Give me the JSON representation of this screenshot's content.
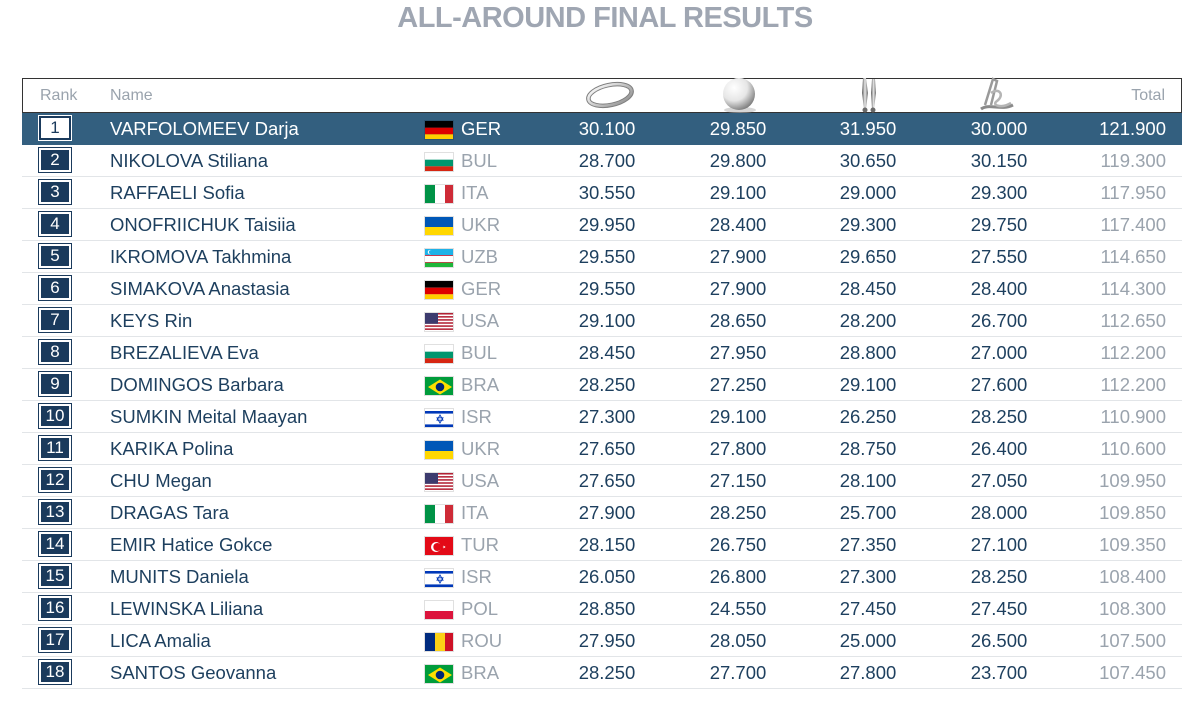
{
  "title": "ALL-AROUND FINAL RESULTS",
  "columns": {
    "rank": "Rank",
    "name": "Name",
    "apparatus_icons": [
      "hoop-icon",
      "ball-icon",
      "clubs-icon",
      "ribbon-icon"
    ],
    "total": "Total"
  },
  "colors": {
    "header_row_bg": "#335f7f",
    "rank_box_bg": "#1a3a5c",
    "title": "#9fa6b2",
    "muted_text": "#9aa3ad"
  },
  "rows": [
    {
      "rank": "1",
      "name": "VARFOLOMEEV Darja",
      "country": "GER",
      "flag": "ger",
      "scores": [
        "30.100",
        "29.850",
        "31.950",
        "30.000"
      ],
      "total": "121.900"
    },
    {
      "rank": "2",
      "name": "NIKOLOVA Stiliana",
      "country": "BUL",
      "flag": "bul",
      "scores": [
        "28.700",
        "29.800",
        "30.650",
        "30.150"
      ],
      "total": "119.300"
    },
    {
      "rank": "3",
      "name": "RAFFAELI Sofia",
      "country": "ITA",
      "flag": "ita",
      "scores": [
        "30.550",
        "29.100",
        "29.000",
        "29.300"
      ],
      "total": "117.950"
    },
    {
      "rank": "4",
      "name": "ONOFRIICHUK Taisiia",
      "country": "UKR",
      "flag": "ukr",
      "scores": [
        "29.950",
        "28.400",
        "29.300",
        "29.750"
      ],
      "total": "117.400"
    },
    {
      "rank": "5",
      "name": "IKROMOVA Takhmina",
      "country": "UZB",
      "flag": "uzb",
      "scores": [
        "29.550",
        "27.900",
        "29.650",
        "27.550"
      ],
      "total": "114.650"
    },
    {
      "rank": "6",
      "name": "SIMAKOVA Anastasia",
      "country": "GER",
      "flag": "ger",
      "scores": [
        "29.550",
        "27.900",
        "28.450",
        "28.400"
      ],
      "total": "114.300"
    },
    {
      "rank": "7",
      "name": "KEYS Rin",
      "country": "USA",
      "flag": "usa",
      "scores": [
        "29.100",
        "28.650",
        "28.200",
        "26.700"
      ],
      "total": "112.650"
    },
    {
      "rank": "8",
      "name": "BREZALIEVA Eva",
      "country": "BUL",
      "flag": "bul",
      "scores": [
        "28.450",
        "27.950",
        "28.800",
        "27.000"
      ],
      "total": "112.200"
    },
    {
      "rank": "9",
      "name": "DOMINGOS Barbara",
      "country": "BRA",
      "flag": "bra",
      "scores": [
        "28.250",
        "27.250",
        "29.100",
        "27.600"
      ],
      "total": "112.200"
    },
    {
      "rank": "10",
      "name": "SUMKIN Meital Maayan",
      "country": "ISR",
      "flag": "isr",
      "scores": [
        "27.300",
        "29.100",
        "26.250",
        "28.250"
      ],
      "total": "110.900"
    },
    {
      "rank": "11",
      "name": "KARIKA Polina",
      "country": "UKR",
      "flag": "ukr",
      "scores": [
        "27.650",
        "27.800",
        "28.750",
        "26.400"
      ],
      "total": "110.600"
    },
    {
      "rank": "12",
      "name": "CHU Megan",
      "country": "USA",
      "flag": "usa",
      "scores": [
        "27.650",
        "27.150",
        "28.100",
        "27.050"
      ],
      "total": "109.950"
    },
    {
      "rank": "13",
      "name": "DRAGAS Tara",
      "country": "ITA",
      "flag": "ita",
      "scores": [
        "27.900",
        "28.250",
        "25.700",
        "28.000"
      ],
      "total": "109.850"
    },
    {
      "rank": "14",
      "name": "EMIR Hatice Gokce",
      "country": "TUR",
      "flag": "tur",
      "scores": [
        "28.150",
        "26.750",
        "27.350",
        "27.100"
      ],
      "total": "109.350"
    },
    {
      "rank": "15",
      "name": "MUNITS Daniela",
      "country": "ISR",
      "flag": "isr",
      "scores": [
        "26.050",
        "26.800",
        "27.300",
        "28.250"
      ],
      "total": "108.400"
    },
    {
      "rank": "16",
      "name": "LEWINSKA Liliana",
      "country": "POL",
      "flag": "pol",
      "scores": [
        "28.850",
        "24.550",
        "27.450",
        "27.450"
      ],
      "total": "108.300"
    },
    {
      "rank": "17",
      "name": "LICA Amalia",
      "country": "ROU",
      "flag": "rou",
      "scores": [
        "27.950",
        "28.050",
        "25.000",
        "26.500"
      ],
      "total": "107.500"
    },
    {
      "rank": "18",
      "name": "SANTOS Geovanna",
      "country": "BRA",
      "flag": "bra",
      "scores": [
        "28.250",
        "27.700",
        "27.800",
        "23.700"
      ],
      "total": "107.450"
    }
  ]
}
